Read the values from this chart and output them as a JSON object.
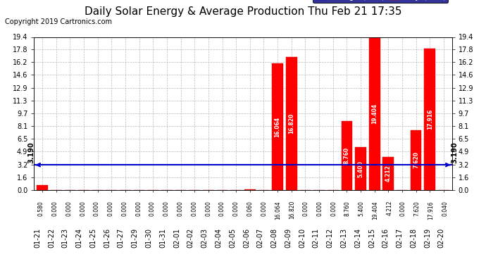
{
  "title": "Daily Solar Energy & Average Production Thu Feb 21 17:35",
  "copyright": "Copyright 2019 Cartronics.com",
  "categories": [
    "01-21",
    "01-22",
    "01-23",
    "01-24",
    "01-25",
    "01-26",
    "01-27",
    "01-29",
    "01-30",
    "01-31",
    "02-01",
    "02-02",
    "02-03",
    "02-04",
    "02-05",
    "02-06",
    "02-07",
    "02-08",
    "02-09",
    "02-10",
    "02-11",
    "02-12",
    "02-13",
    "02-14",
    "02-15",
    "02-16",
    "02-17",
    "02-18",
    "02-19",
    "02-20"
  ],
  "daily_values": [
    0.58,
    0.0,
    0.0,
    0.0,
    0.0,
    0.0,
    0.0,
    0.0,
    0.0,
    0.0,
    0.0,
    0.0,
    0.0,
    0.0,
    0.0,
    0.06,
    0.0,
    16.064,
    16.82,
    0.0,
    0.0,
    0.0,
    8.76,
    5.4,
    19.404,
    4.212,
    0.0,
    7.62,
    17.916,
    0.04
  ],
  "average_value": 3.19,
  "bar_color": "#FF0000",
  "average_line_color": "#0000CC",
  "ylim": [
    0,
    19.4
  ],
  "yticks": [
    0.0,
    1.6,
    3.2,
    4.9,
    6.5,
    8.1,
    9.7,
    11.3,
    12.9,
    14.6,
    16.2,
    17.8,
    19.4
  ],
  "background_color": "#FFFFFF",
  "plot_bg_color": "#FFFFFF",
  "grid_color": "#AAAAAA",
  "legend_avg_bg": "#0000CC",
  "legend_daily_bg": "#FF0000",
  "title_fontsize": 11,
  "copyright_fontsize": 7,
  "tick_fontsize": 7,
  "value_fontsize": 5.5
}
